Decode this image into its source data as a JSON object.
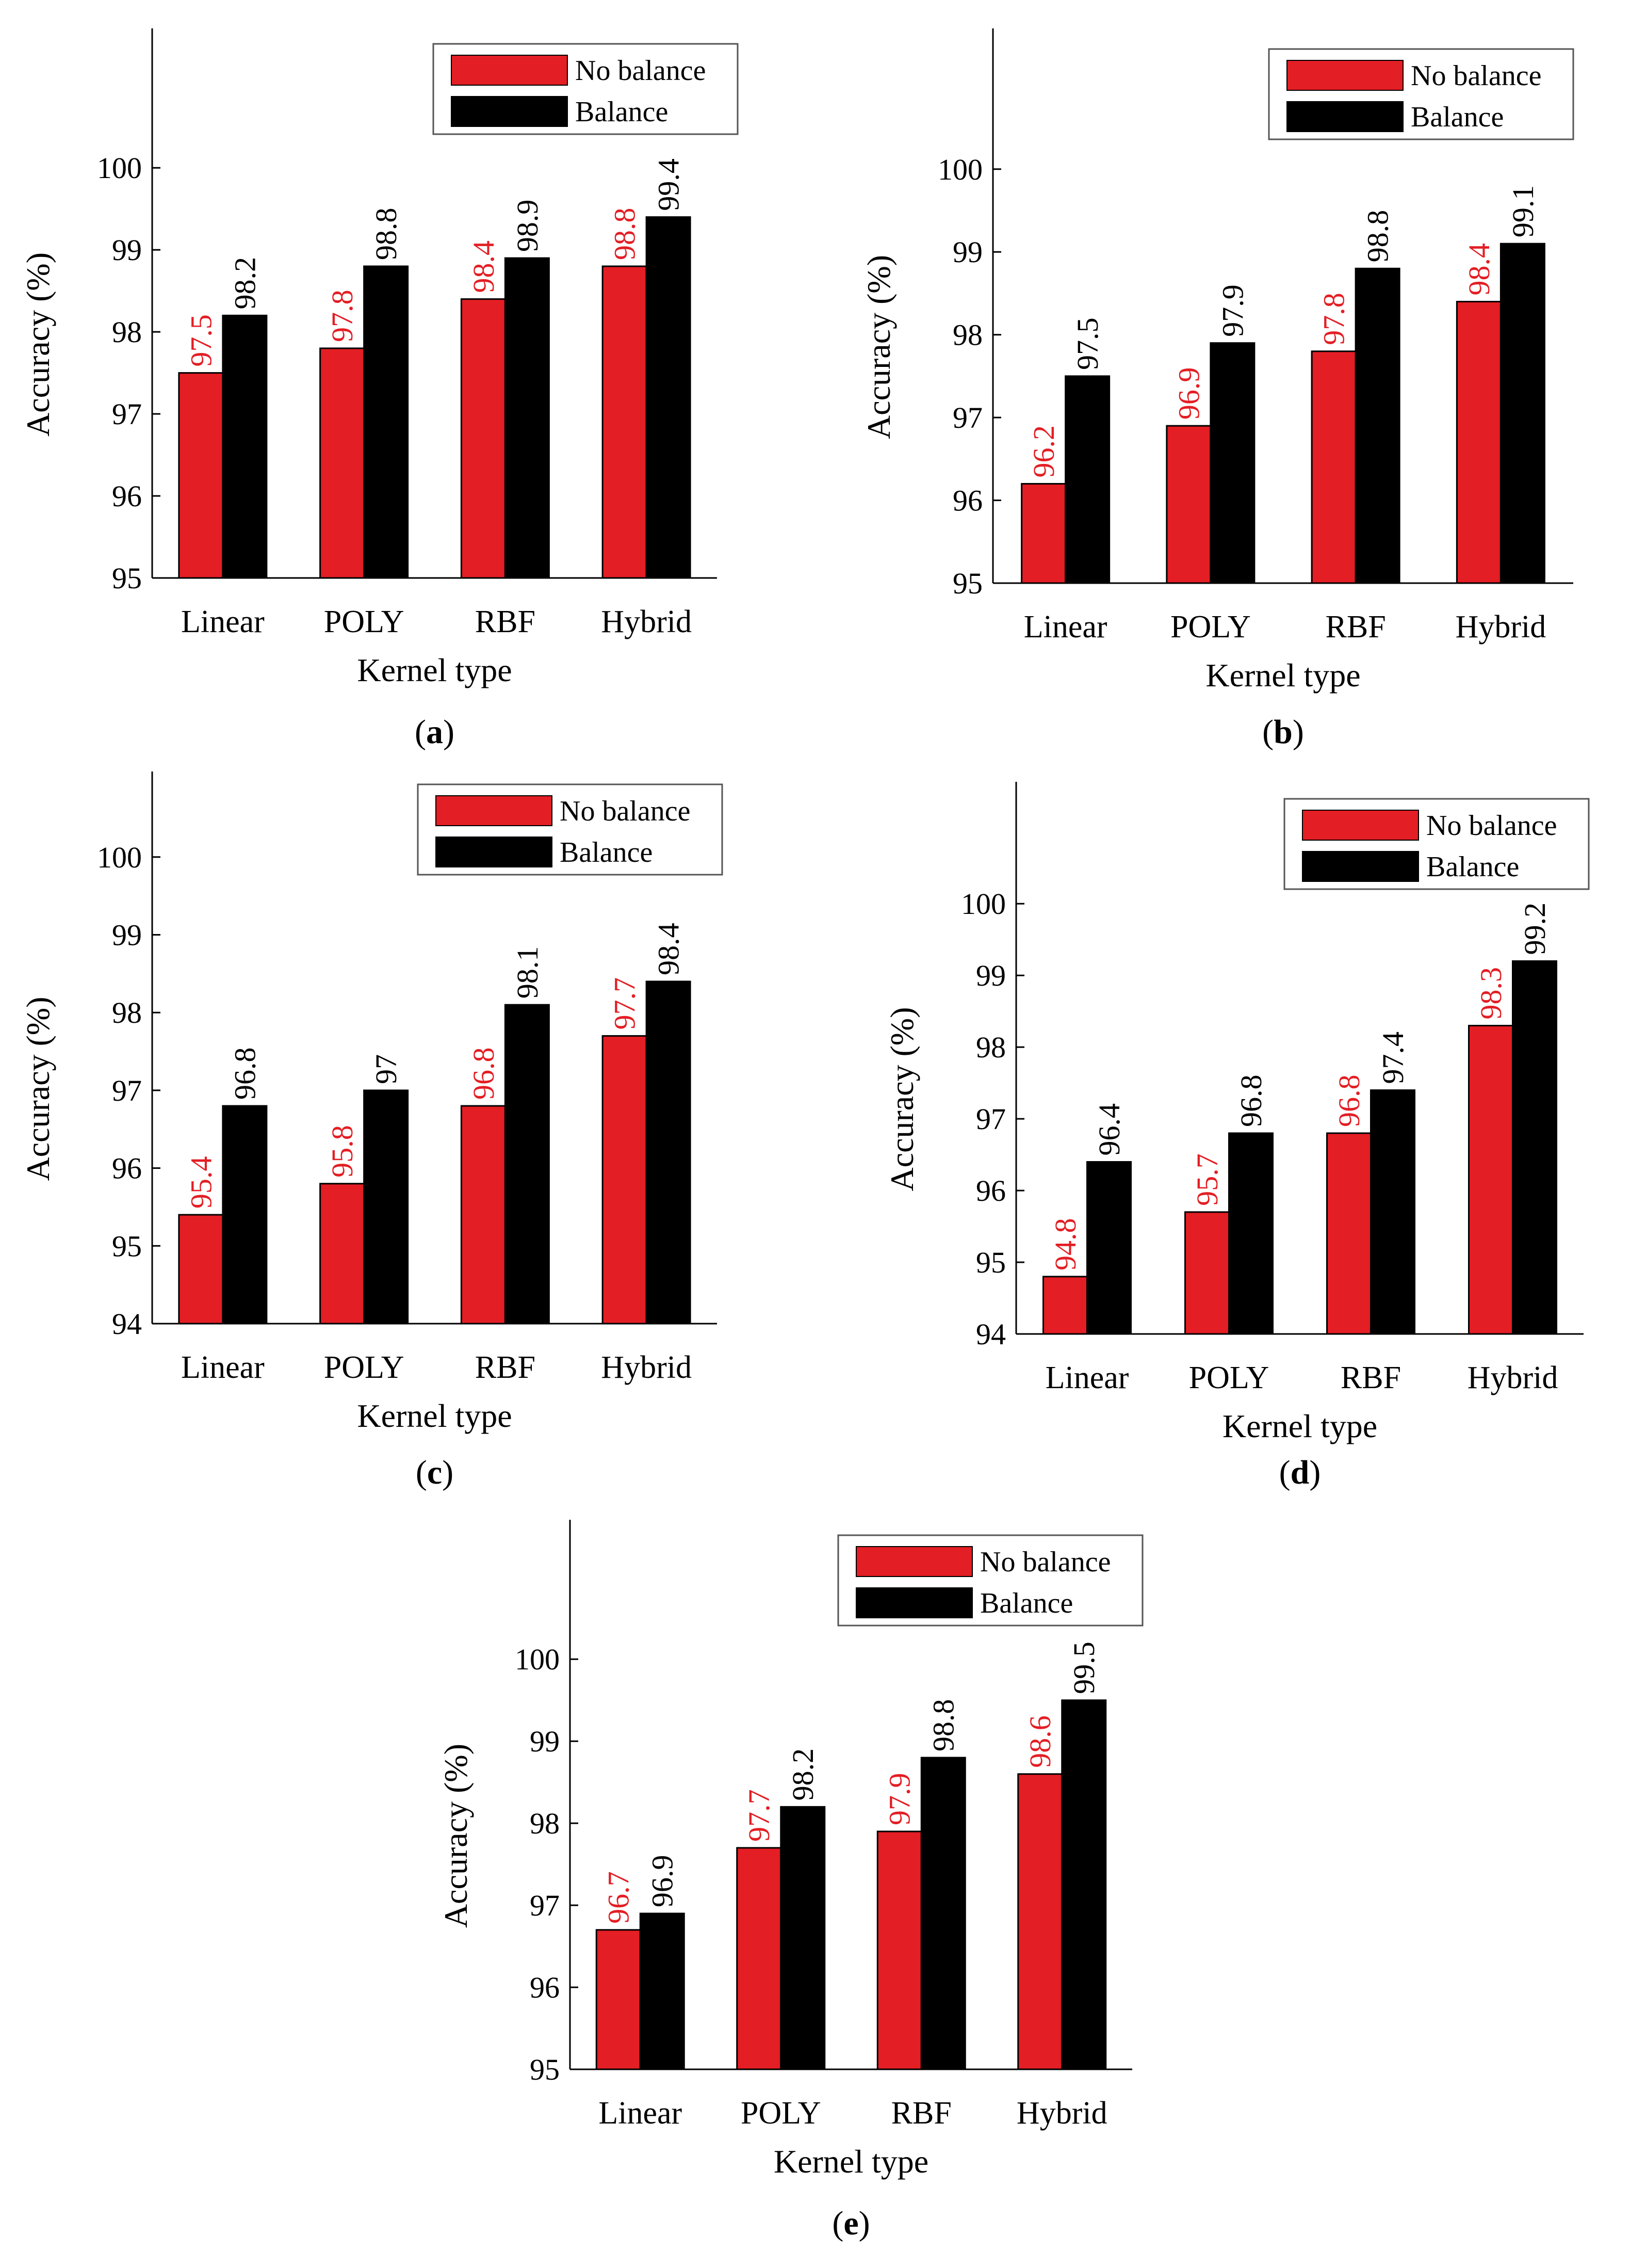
{
  "colors": {
    "no_balance": "#e31e24",
    "balance": "#000000",
    "no_balance_label": "#e31e24",
    "balance_label": "#000000",
    "axis": "#000000"
  },
  "panel_labels": [
    "a",
    "b",
    "c",
    "d",
    "e"
  ],
  "chart_data": [
    {
      "type": "bar",
      "title": "",
      "xlabel": "Kernel type",
      "ylabel": "Accuracy (%)",
      "ylim": [
        95,
        101.7
      ],
      "yticks": [
        "95",
        "96",
        "97",
        "98",
        "99",
        "100"
      ],
      "categories": [
        "Linear",
        "POLY",
        "RBF",
        "Hybrid"
      ],
      "legend": "top-right",
      "series": [
        {
          "name": "No balance",
          "values": [
            97.5,
            97.8,
            98.4,
            98.8
          ],
          "labels": [
            "97.5",
            "97.8",
            "98.4",
            "98.8"
          ]
        },
        {
          "name": "Balance",
          "values": [
            98.2,
            98.8,
            98.9,
            99.4
          ],
          "labels": [
            "98.2",
            "98.8",
            "98.9",
            "99.4"
          ]
        }
      ]
    },
    {
      "type": "bar",
      "title": "",
      "xlabel": "Kernel type",
      "ylabel": "Accuracy (%)",
      "ylim": [
        95,
        101.7
      ],
      "yticks": [
        "95",
        "96",
        "97",
        "98",
        "99",
        "100"
      ],
      "categories": [
        "Linear",
        "POLY",
        "RBF",
        "Hybrid"
      ],
      "legend": "top-right",
      "series": [
        {
          "name": "No balance",
          "values": [
            96.2,
            96.9,
            97.8,
            98.4
          ],
          "labels": [
            "96.2",
            "96.9",
            "97.8",
            "98.4"
          ]
        },
        {
          "name": "Balance",
          "values": [
            97.5,
            97.9,
            98.8,
            99.1
          ],
          "labels": [
            "97.5",
            "97.9",
            "98.8",
            "99.1"
          ]
        }
      ]
    },
    {
      "type": "bar",
      "title": "",
      "xlabel": "Kernel type",
      "ylabel": "Accuracy (%)",
      "ylim": [
        94,
        101.1
      ],
      "yticks": [
        "94",
        "95",
        "96",
        "97",
        "98",
        "99",
        "100"
      ],
      "categories": [
        "Linear",
        "POLY",
        "RBF",
        "Hybrid"
      ],
      "legend": "top-right",
      "series": [
        {
          "name": "No balance",
          "values": [
            95.4,
            95.8,
            96.8,
            97.7
          ],
          "labels": [
            "95.4",
            "95.8",
            "96.8",
            "97.7"
          ]
        },
        {
          "name": "Balance",
          "values": [
            96.8,
            97.0,
            98.1,
            98.4
          ],
          "labels": [
            "96.8",
            "97",
            "98.1",
            "98.4"
          ]
        }
      ]
    },
    {
      "type": "bar",
      "title": "",
      "xlabel": "Kernel type",
      "ylabel": "Accuracy (%)",
      "ylim": [
        94,
        101.7
      ],
      "yticks": [
        "94",
        "95",
        "96",
        "97",
        "98",
        "99",
        "100"
      ],
      "categories": [
        "Linear",
        "POLY",
        "RBF",
        "Hybrid"
      ],
      "legend": "top-right",
      "series": [
        {
          "name": "No balance",
          "values": [
            94.8,
            95.7,
            96.8,
            98.3
          ],
          "labels": [
            "94.8",
            "95.7",
            "96.8",
            "98.3"
          ]
        },
        {
          "name": "Balance",
          "values": [
            96.4,
            96.8,
            97.4,
            99.2
          ],
          "labels": [
            "96.4",
            "96.8",
            "97.4",
            "99.2"
          ]
        }
      ]
    },
    {
      "type": "bar",
      "title": "",
      "xlabel": "Kernel type",
      "ylabel": "Accuracy (%)",
      "ylim": [
        95,
        101.7
      ],
      "yticks": [
        "95",
        "96",
        "97",
        "98",
        "99",
        "100"
      ],
      "categories": [
        "Linear",
        "POLY",
        "RBF",
        "Hybrid"
      ],
      "legend": "top-right",
      "series": [
        {
          "name": "No balance",
          "values": [
            96.7,
            97.7,
            97.9,
            98.6
          ],
          "labels": [
            "96.7",
            "97.7",
            "97.9",
            "98.6"
          ]
        },
        {
          "name": "Balance",
          "values": [
            96.9,
            98.2,
            98.8,
            99.5
          ],
          "labels": [
            "96.9",
            "98.2",
            "98.8",
            "99.5"
          ]
        }
      ]
    }
  ]
}
